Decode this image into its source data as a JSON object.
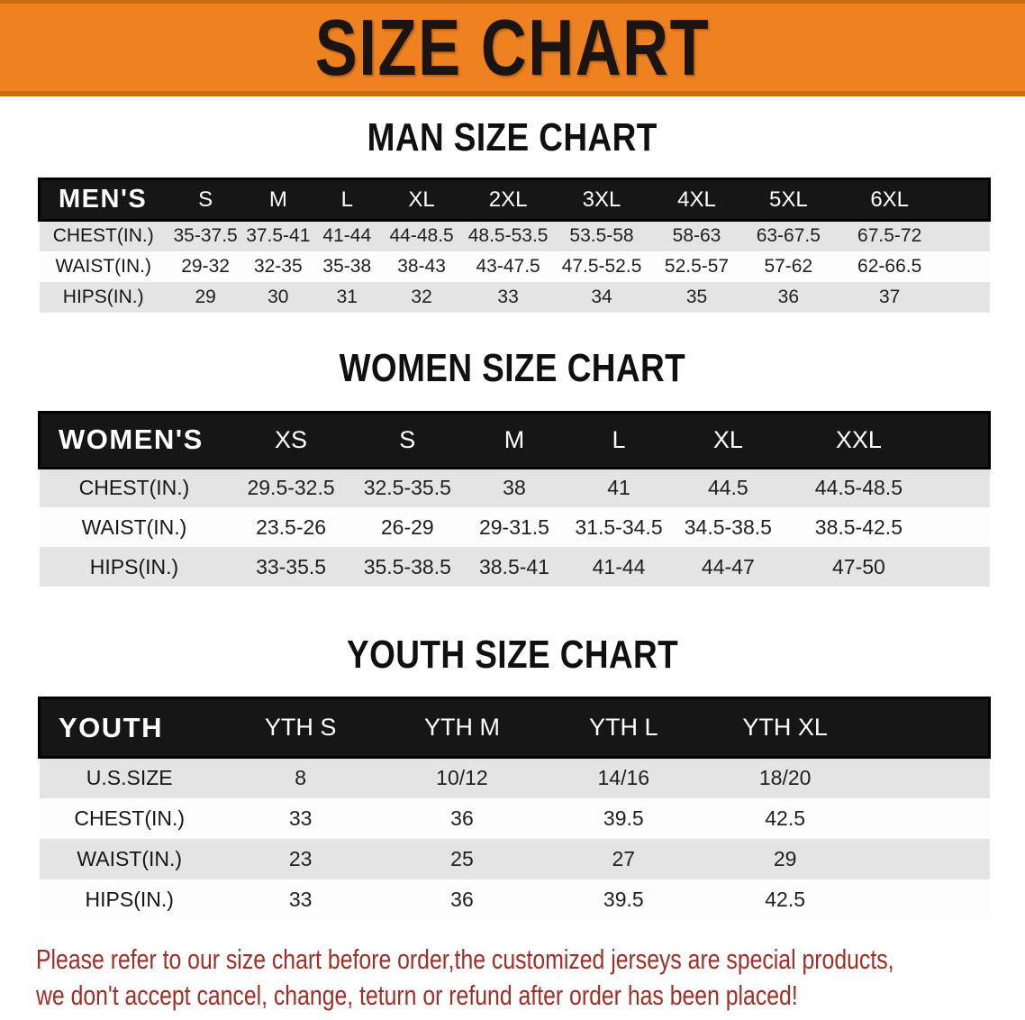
{
  "banner": {
    "title": "SIZE CHART"
  },
  "sections": [
    {
      "heading": "MAN SIZE CHART",
      "table": {
        "label": "MEN'S",
        "columns": [
          "S",
          "M",
          "L",
          "XL",
          "2XL",
          "3XL",
          "4XL",
          "5XL",
          "6XL"
        ],
        "rows": [
          {
            "label": "CHEST(IN.)",
            "values": [
              "35-37.5",
              "37.5-41",
              "41-44",
              "44-48.5",
              "48.5-53.5",
              "53.5-58",
              "58-63",
              "63-67.5",
              "67.5-72"
            ]
          },
          {
            "label": "WAIST(IN.)",
            "values": [
              "29-32",
              "32-35",
              "35-38",
              "38-43",
              "43-47.5",
              "47.5-52.5",
              "52.5-57",
              "57-62",
              "62-66.5"
            ]
          },
          {
            "label": "HIPS(IN.)",
            "values": [
              "29",
              "30",
              "31",
              "32",
              "33",
              "34",
              "35",
              "36",
              "37"
            ]
          }
        ]
      }
    },
    {
      "heading": "WOMEN SIZE CHART",
      "table": {
        "label": "WOMEN'S",
        "columns": [
          "XS",
          "S",
          "M",
          "L",
          "XL",
          "XXL"
        ],
        "rows": [
          {
            "label": "CHEST(IN.)",
            "values": [
              "29.5-32.5",
              "32.5-35.5",
              "38",
              "41",
              "44.5",
              "44.5-48.5"
            ]
          },
          {
            "label": "WAIST(IN.)",
            "values": [
              "23.5-26",
              "26-29",
              "29-31.5",
              "31.5-34.5",
              "34.5-38.5",
              "38.5-42.5"
            ]
          },
          {
            "label": "HIPS(IN.)",
            "values": [
              "33-35.5",
              "35.5-38.5",
              "38.5-41",
              "41-44",
              "44-47",
              "47-50"
            ]
          }
        ]
      }
    },
    {
      "heading": "YOUTH SIZE CHART",
      "table": {
        "label": "YOUTH",
        "columns": [
          "YTH S",
          "YTH M",
          "YTH L",
          "YTH XL"
        ],
        "rows": [
          {
            "label": "U.S.SIZE",
            "values": [
              "8",
              "10/12",
              "14/16",
              "18/20"
            ]
          },
          {
            "label": "CHEST(IN.)",
            "values": [
              "33",
              "36",
              "39.5",
              "42.5"
            ]
          },
          {
            "label": "WAIST(IN.)",
            "values": [
              "23",
              "25",
              "27",
              "29"
            ]
          },
          {
            "label": "HIPS(IN.)",
            "values": [
              "33",
              "36",
              "39.5",
              "42.5"
            ]
          }
        ]
      }
    }
  ],
  "disclaimer": {
    "line1": "Please refer to our size chart before order,the customized jerseys are special products,",
    "line2": "we don't accept cancel, change, teturn or refund after order has been placed!"
  },
  "colors": {
    "banner_orange": "#EE8120",
    "banner_orange_dark": "#C96E10",
    "title_black": "#1A1512",
    "header_black": "#161616",
    "stripe_gray": "#E4E4E4",
    "disclaimer_red": "#A22D25"
  }
}
